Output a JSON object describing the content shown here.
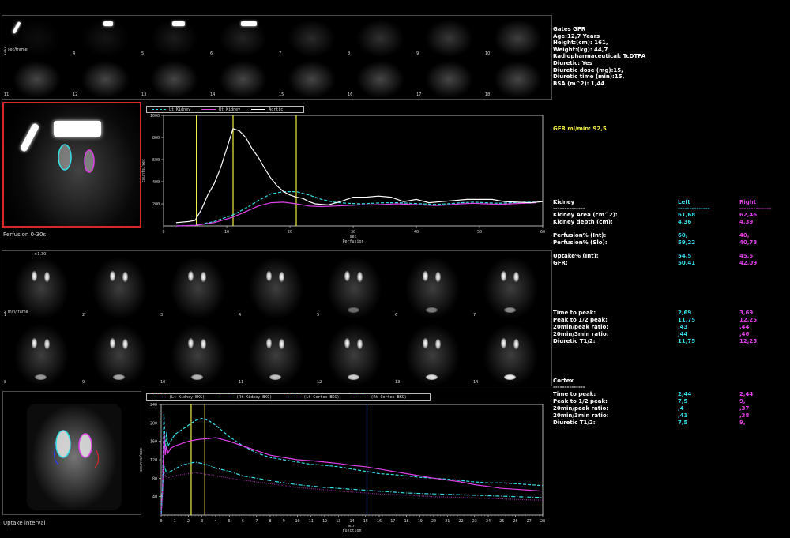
{
  "patient_info": [
    "Gates GFR",
    "Age:12,7 Years",
    "Height:(cm): 161,",
    "Weight:(kg): 44,7",
    "Radiopharmaceutical: TcDTPA",
    "Diuretic: Yes",
    "Diuretic dose (mg):15,",
    "Diuretic time (min):15,",
    "BSA (m^2): 1,44"
  ],
  "perfusion_frames": {
    "label": "2 sec/frame",
    "numbers": [
      "3",
      "4",
      "5",
      "6",
      "7",
      "8",
      "9",
      "10",
      "11",
      "12",
      "13",
      "14",
      "15",
      "16",
      "17",
      "18"
    ]
  },
  "function_frames": {
    "label": "2 min/frame",
    "zoom": "×1.30",
    "numbers": [
      "1",
      "2",
      "3",
      "4",
      "5",
      "6",
      "7",
      "8",
      "9",
      "10",
      "11",
      "12",
      "13",
      "14"
    ]
  },
  "perfusion_image_caption": "Perfusion 0-30s",
  "uptake_image_caption": "Uptake interval",
  "gfr": "GFR ml/min: 92,5",
  "colors": {
    "cyan": "#33e0e8",
    "magenta": "#e040e8",
    "yellow": "#f0ee40",
    "blue": "#2a3cff",
    "white": "#ffffff",
    "darkmag": "#9a2aa0"
  },
  "table": {
    "kidney_header": "Kidney",
    "left_header": "Left",
    "right_header": "Right",
    "divider": "--------------",
    "rows1": [
      {
        "label": "Kidney Area (cm^2):",
        "left": "61,68",
        "right": "62,46"
      },
      {
        "label": "Kidney depth (cm):",
        "left": "4,36",
        "right": "4,39"
      }
    ],
    "rows2": [
      {
        "label": "Perfusion% (Int):",
        "left": "60,",
        "right": "40,"
      },
      {
        "label": "Perfusion% (Slo):",
        "left": "59,22",
        "right": "40,78"
      }
    ],
    "rows3": [
      {
        "label": "Uptake% (Int):",
        "left": "54,5",
        "right": "45,5"
      },
      {
        "label": "GFR:",
        "left": "50,41",
        "right": "42,09"
      }
    ],
    "rows4": [
      {
        "label": "Time to peak:",
        "left": "2,69",
        "right": "3,69"
      },
      {
        "label": "Peak to 1/2 peak:",
        "left": "11,75",
        "right": "12,25"
      },
      {
        "label": "20min/peak ratio:",
        "left": ",43",
        "right": ",44"
      },
      {
        "label": "20min/3min ratio:",
        "left": ",44",
        "right": ",46"
      },
      {
        "label": "Diuretic T1/2:",
        "left": "11,75",
        "right": "12,25"
      }
    ],
    "cortex_header": "Cortex",
    "rows5": [
      {
        "label": "Time to peak:",
        "left": "2,44",
        "right": "2,44"
      },
      {
        "label": "Peak to 1/2 peak:",
        "left": "7,5",
        "right": "9,"
      },
      {
        "label": "20min/peak ratio:",
        "left": ",4",
        "right": ",37"
      },
      {
        "label": "20min/3min ratio:",
        "left": ",41",
        "right": ",38"
      },
      {
        "label": "Diuretic T1/2:",
        "left": "7,5",
        "right": "9,"
      }
    ]
  },
  "chart_data": [
    {
      "type": "line",
      "title": "",
      "xlabel": "sec",
      "subtitle": "Perfusion",
      "ylabel": "counts/sec",
      "xlim": [
        0,
        60
      ],
      "ylim": [
        0,
        1000
      ],
      "xticks": [
        "0",
        "10",
        "20",
        "30",
        "40",
        "50",
        "60"
      ],
      "yticks": [
        "200",
        "400",
        "600",
        "800",
        "1000"
      ],
      "vlines": [
        5.2,
        11,
        21
      ],
      "series": [
        {
          "name": "Lt Kidney",
          "style": "dashed",
          "color": "#33e0e8",
          "x": [
            2,
            5,
            8,
            11,
            13,
            15,
            17,
            19,
            21,
            23,
            25,
            27,
            29,
            31,
            33,
            35,
            37,
            39,
            41,
            43,
            45,
            47,
            49,
            51,
            53,
            55,
            57,
            59
          ],
          "y": [
            0,
            5,
            40,
            100,
            160,
            230,
            290,
            310,
            310,
            280,
            240,
            215,
            205,
            200,
            205,
            210,
            210,
            205,
            200,
            195,
            200,
            210,
            215,
            210,
            205,
            210,
            215,
            215
          ]
        },
        {
          "name": "Rt Kidney",
          "style": "solid",
          "color": "#e040e8",
          "x": [
            2,
            5,
            8,
            11,
            13,
            15,
            17,
            19,
            21,
            23,
            25,
            27,
            29,
            31,
            33,
            35,
            37,
            39,
            41,
            43,
            45,
            47,
            49,
            51,
            53,
            55,
            57,
            59
          ],
          "y": [
            0,
            5,
            30,
            80,
            130,
            180,
            210,
            215,
            200,
            180,
            175,
            180,
            185,
            190,
            190,
            195,
            200,
            195,
            190,
            185,
            190,
            200,
            205,
            200,
            195,
            200,
            205,
            210
          ]
        },
        {
          "name": "Aortic",
          "style": "solid",
          "color": "#ffffff",
          "x": [
            2,
            4,
            5,
            6,
            7,
            8,
            9,
            10,
            11,
            12,
            13,
            14,
            15,
            16,
            17,
            18,
            19,
            20,
            21,
            22,
            23,
            24,
            26,
            28,
            30,
            32,
            34,
            36,
            38,
            40,
            42,
            44,
            46,
            48,
            50,
            52,
            54,
            56,
            58,
            60
          ],
          "y": [
            30,
            40,
            50,
            150,
            280,
            380,
            520,
            700,
            880,
            860,
            800,
            700,
            620,
            520,
            430,
            360,
            310,
            280,
            260,
            250,
            220,
            200,
            190,
            220,
            260,
            260,
            270,
            260,
            220,
            240,
            210,
            220,
            230,
            240,
            240,
            240,
            220,
            215,
            210,
            220
          ]
        }
      ]
    },
    {
      "type": "line",
      "title": "",
      "xlabel": "min",
      "subtitle": "Function",
      "ylabel": "counts/sec",
      "xlim": [
        0,
        28
      ],
      "ylim": [
        0,
        240
      ],
      "xticks": [
        "0",
        "1",
        "2",
        "3",
        "4",
        "5",
        "6",
        "7",
        "8",
        "9",
        "10",
        "11",
        "12",
        "13",
        "14",
        "15",
        "16",
        "17",
        "18",
        "19",
        "20",
        "21",
        "22",
        "23",
        "24",
        "25",
        "26",
        "27",
        "28"
      ],
      "yticks": [
        "40",
        "80",
        "120",
        "160",
        "200",
        "240"
      ],
      "vlines_yellow": [
        2.2,
        3.2
      ],
      "vline_blue": 15.1,
      "series": [
        {
          "name": "(Lt Kidney-BKG)",
          "style": "dashed",
          "color": "#33e0e8",
          "x": [
            0,
            0.1,
            0.2,
            0.3,
            0.4,
            0.5,
            0.7,
            1,
            1.5,
            2,
            2.5,
            3,
            3.5,
            4,
            5,
            6,
            7,
            8,
            9,
            10,
            11,
            12,
            13,
            14,
            15,
            16,
            17,
            18,
            19,
            20,
            21,
            22,
            23,
            24,
            25,
            26,
            27,
            28
          ],
          "y": [
            0,
            60,
            220,
            140,
            180,
            150,
            160,
            175,
            185,
            195,
            205,
            210,
            205,
            195,
            170,
            150,
            135,
            125,
            120,
            115,
            110,
            108,
            105,
            100,
            95,
            90,
            88,
            85,
            82,
            80,
            78,
            75,
            72,
            70,
            70,
            68,
            66,
            64
          ]
        },
        {
          "name": "(Rt Kidney-BKG)",
          "style": "solid",
          "color": "#e040e8",
          "x": [
            0,
            0.1,
            0.2,
            0.3,
            0.4,
            0.5,
            0.7,
            1,
            1.5,
            2,
            2.5,
            3,
            3.5,
            4,
            5,
            6,
            7,
            8,
            9,
            10,
            11,
            12,
            13,
            14,
            15,
            16,
            17,
            18,
            19,
            20,
            21,
            22,
            23,
            24,
            25,
            26,
            27,
            28
          ],
          "y": [
            0,
            50,
            180,
            130,
            150,
            135,
            145,
            150,
            155,
            160,
            163,
            165,
            166,
            168,
            160,
            150,
            140,
            130,
            125,
            120,
            118,
            115,
            112,
            108,
            105,
            100,
            95,
            90,
            85,
            80,
            76,
            72,
            66,
            62,
            58,
            56,
            54,
            52
          ]
        },
        {
          "name": "(Lt Cortex-BKG)",
          "style": "dashdot",
          "color": "#33e0e8",
          "x": [
            0,
            0.2,
            0.4,
            0.7,
            1,
            1.5,
            2,
            2.5,
            3,
            3.5,
            4,
            5,
            6,
            7,
            8,
            9,
            10,
            12,
            14,
            16,
            18,
            20,
            22,
            24,
            26,
            28
          ],
          "y": [
            0,
            110,
            90,
            95,
            100,
            108,
            112,
            115,
            112,
            108,
            102,
            95,
            85,
            80,
            75,
            70,
            66,
            60,
            56,
            52,
            48,
            46,
            44,
            42,
            40,
            38
          ]
        },
        {
          "name": "(Rt Cortex-BKG)",
          "style": "dotted",
          "color": "#9a2aa0",
          "x": [
            0,
            0.2,
            0.4,
            0.7,
            1,
            1.5,
            2,
            2.5,
            3,
            3.5,
            4,
            5,
            6,
            7,
            8,
            9,
            10,
            12,
            14,
            16,
            18,
            20,
            22,
            24,
            26,
            28
          ],
          "y": [
            0,
            95,
            80,
            82,
            85,
            88,
            90,
            92,
            90,
            88,
            85,
            80,
            76,
            72,
            68,
            64,
            60,
            55,
            50,
            46,
            43,
            40,
            38,
            36,
            34,
            32
          ]
        }
      ]
    }
  ]
}
